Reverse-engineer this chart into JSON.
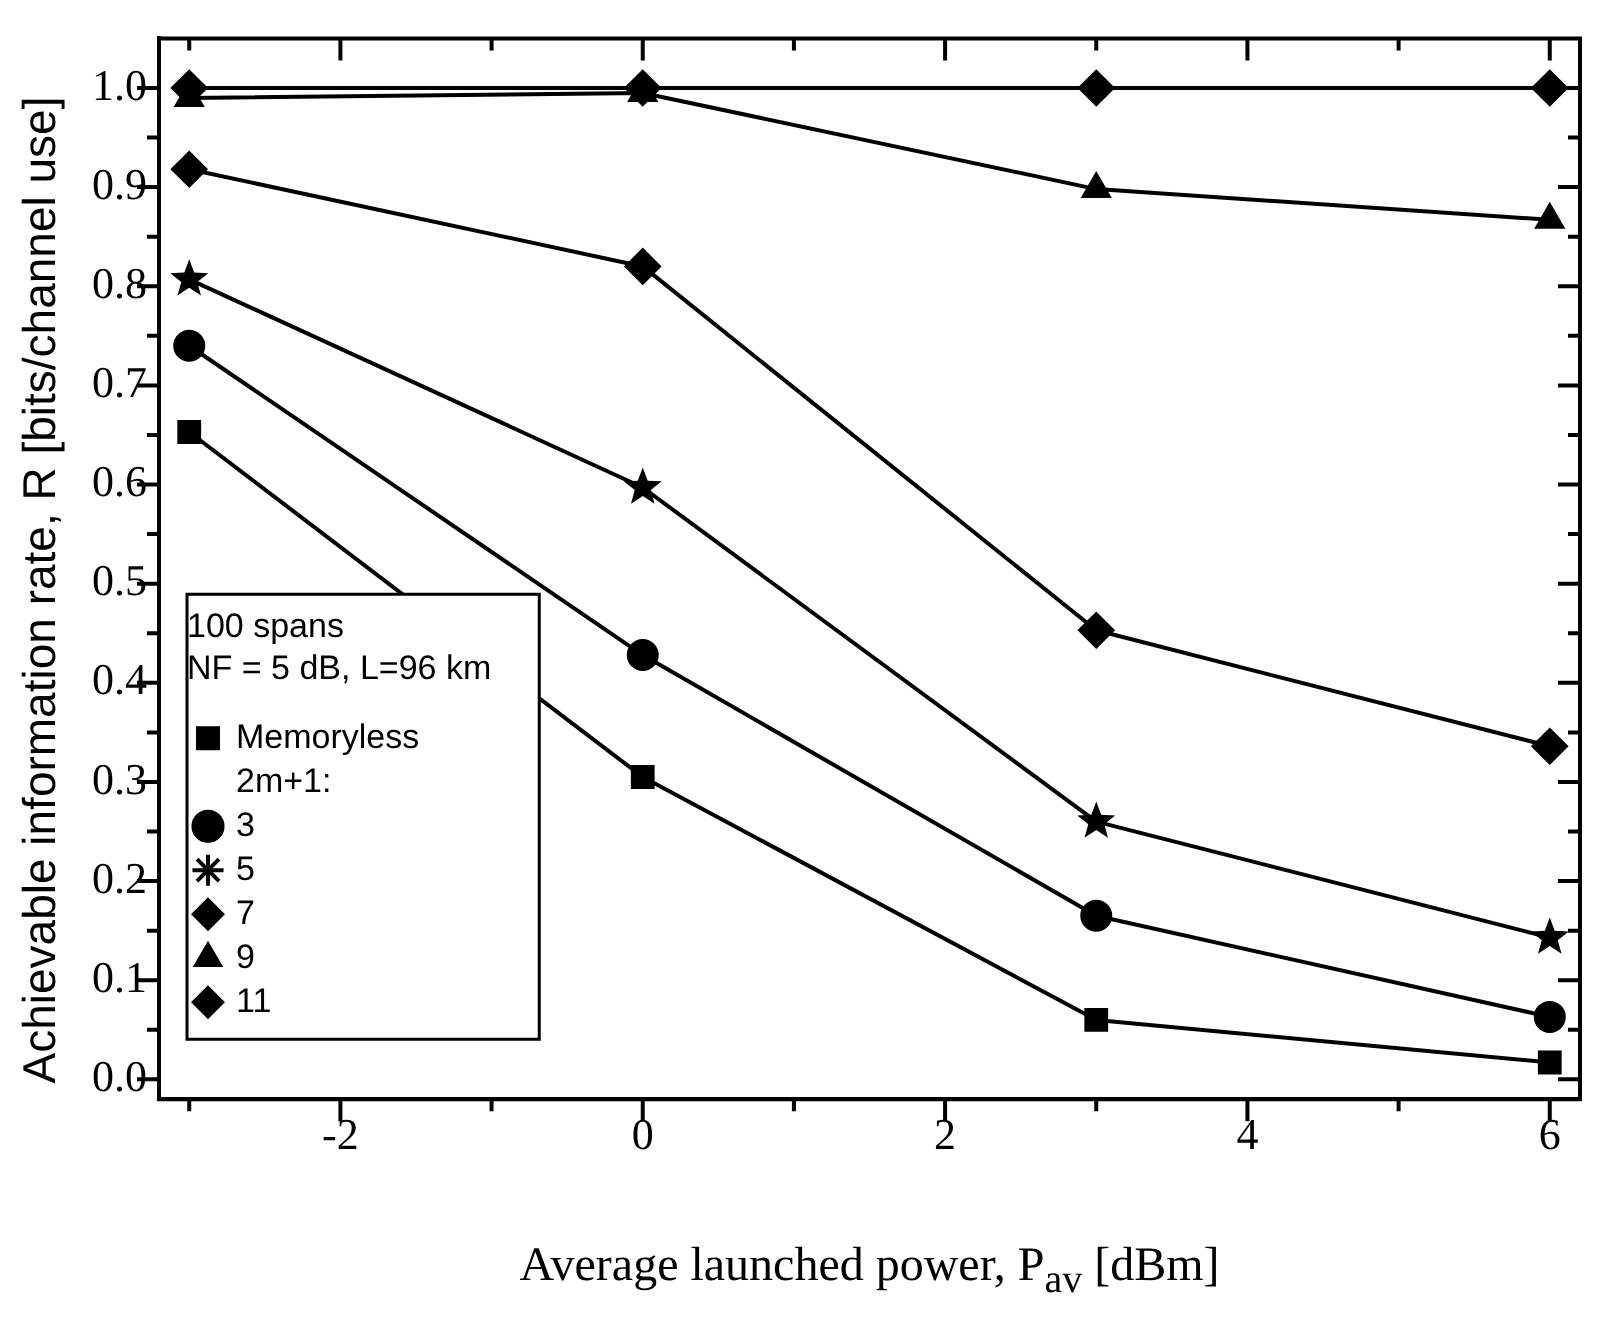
{
  "chart_data": {
    "type": "line",
    "xlabel": "Average launched power, P$_{av}$ [dBm]",
    "ylabel": "Achievable information rate, R [bits/channel use]",
    "legend_title": "100 spans\nNF = 5 dB, L=96 km",
    "annotations": [
      "2m+1:"
    ],
    "legend": "bottom left",
    "grid": false,
    "line_style": "solid",
    "x": [
      -3,
      0,
      3,
      6
    ],
    "xlim": [
      -3.2,
      6.2
    ],
    "xticks": [
      {
        "value": -3,
        "label": null
      },
      -2,
      {
        "value": -1,
        "label": null
      },
      0,
      {
        "value": 1,
        "label": null
      },
      2,
      {
        "value": 3,
        "label": null
      },
      4,
      {
        "value": 5,
        "label": null
      },
      6
    ],
    "ylim": [
      -0.02,
      1.05
    ],
    "yticks": [
      {
        "value": 0,
        "label": "0.0"
      },
      {
        "value": 0.05,
        "label": null
      },
      0.1,
      {
        "value": 0.15,
        "label": null
      },
      0.2,
      {
        "value": 0.25,
        "label": null
      },
      0.3,
      {
        "value": 0.35,
        "label": null
      },
      0.4,
      {
        "value": 0.45,
        "label": null
      },
      0.5,
      {
        "value": 0.55,
        "label": null
      },
      0.6,
      {
        "value": 0.65,
        "label": null
      },
      0.7,
      {
        "value": 0.75,
        "label": null
      },
      0.8,
      {
        "value": 0.85,
        "label": null
      },
      0.9,
      {
        "value": 0.95,
        "label": null
      },
      {
        "value": 1,
        "label": "1.0"
      }
    ],
    "series": [
      {
        "name": "Memoryless",
        "color": "#000000",
        "marker": "square",
        "values": [
          0.653,
          0.305,
          0.06,
          0.017
        ]
      },
      {
        "name": "3",
        "color": "#000000",
        "marker": "circle",
        "values": [
          0.74,
          0.428,
          0.165,
          0.063
        ]
      },
      {
        "name": "5",
        "color": "#000000",
        "marker": "star",
        "values": [
          0.807,
          0.597,
          0.26,
          0.143
        ]
      },
      {
        "name": "7",
        "color": "#000000",
        "marker": "diamond",
        "values": [
          0.918,
          0.82,
          0.453,
          0.336
        ]
      },
      {
        "name": "9",
        "color": "#000000",
        "marker": "triangle",
        "values": [
          0.99,
          0.995,
          0.898,
          0.867
        ]
      },
      {
        "name": "11",
        "color": "#000000",
        "marker": "diamond",
        "values": [
          1.0,
          1.0,
          1.0,
          1.0
        ]
      }
    ]
  }
}
